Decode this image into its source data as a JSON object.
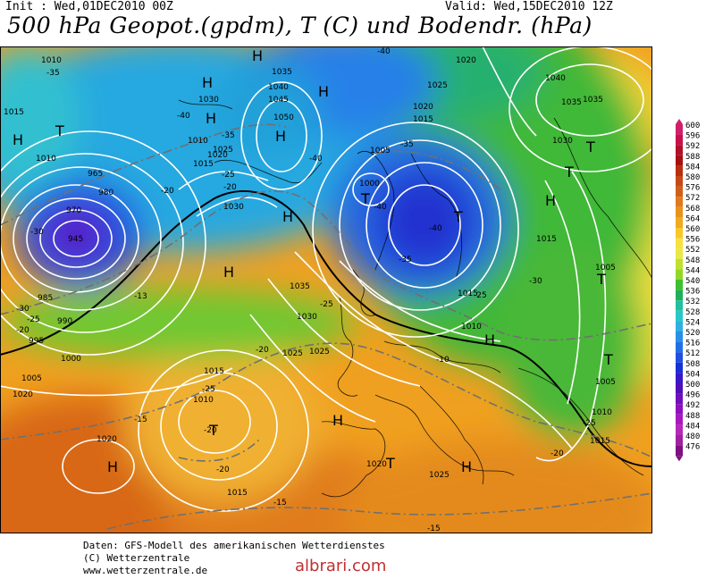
{
  "header": {
    "init_text": "Init : Wed,01DEC2010 00Z",
    "valid_text": "Valid: Wed,15DEC2010 12Z",
    "title": "500 hPa Geopot.(gpdm), T (C) und Bodendr. (hPa)"
  },
  "colorbar": {
    "labels": [
      "600",
      "596",
      "592",
      "588",
      "584",
      "580",
      "576",
      "572",
      "568",
      "564",
      "560",
      "556",
      "552",
      "548",
      "544",
      "540",
      "536",
      "532",
      "528",
      "524",
      "520",
      "516",
      "512",
      "508",
      "504",
      "500",
      "496",
      "492",
      "488",
      "484",
      "480",
      "476"
    ],
    "colors": [
      "#d0206c",
      "#c8104a",
      "#b0102a",
      "#a81010",
      "#b83010",
      "#c84818",
      "#d06018",
      "#e07a1c",
      "#e8921c",
      "#f0aa20",
      "#f8c828",
      "#f8e040",
      "#e8e848",
      "#c0e030",
      "#90d828",
      "#40c030",
      "#20b058",
      "#20c0a0",
      "#28c8c8",
      "#30b0e0",
      "#2890e8",
      "#2070e8",
      "#2050e0",
      "#1830d8",
      "#3818c8",
      "#5010b8",
      "#7010b8",
      "#9010c0",
      "#a818c0",
      "#b828b8",
      "#a020a0",
      "#801080"
    ]
  },
  "map": {
    "pressure_labels": [
      "1010",
      "1015",
      "995",
      "985",
      "990",
      "1000",
      "1005",
      "980",
      "970",
      "965",
      "945",
      "1020",
      "1025",
      "1030",
      "1035",
      "1040",
      "1045",
      "1050",
      "1000",
      "1010",
      "1015",
      "1020",
      "1025",
      "1030",
      "1035",
      "1040",
      "1005",
      "1010",
      "1015",
      "1020",
      "1025",
      "1030",
      "1035",
      "1010",
      "1015",
      "1020",
      "1025",
      "1015",
      "1020",
      "1005",
      "1010",
      "1015",
      "1015",
      "1025",
      "1030",
      "1035",
      "1015",
      "1010",
      "1005",
      "1020"
    ],
    "temp_labels": [
      "-35",
      "-40",
      "-35",
      "-30",
      "-25",
      "-20",
      "-13",
      "-30",
      "-25",
      "-20",
      "-20",
      "-25",
      "-40",
      "-40",
      "-35",
      "-40",
      "-35",
      "-30",
      "-25",
      "-20",
      "-25",
      "-20",
      "-15",
      "-20",
      "-15",
      "-10",
      "-25",
      "-20",
      "-15",
      "-40"
    ],
    "highs": [
      "H",
      "H",
      "H",
      "H",
      "H",
      "H",
      "H",
      "H",
      "H",
      "H",
      "H",
      "H",
      "H"
    ],
    "lows": [
      "T",
      "T",
      "T",
      "T",
      "T",
      "T",
      "T",
      "T",
      "T"
    ]
  },
  "footer": {
    "line1": "Daten: GFS-Modell des amerikanischen Wetterdienstes",
    "line2": "(C) Wetterzentrale",
    "line3": "www.wetterzentrale.de"
  },
  "watermark": "albrari.com"
}
